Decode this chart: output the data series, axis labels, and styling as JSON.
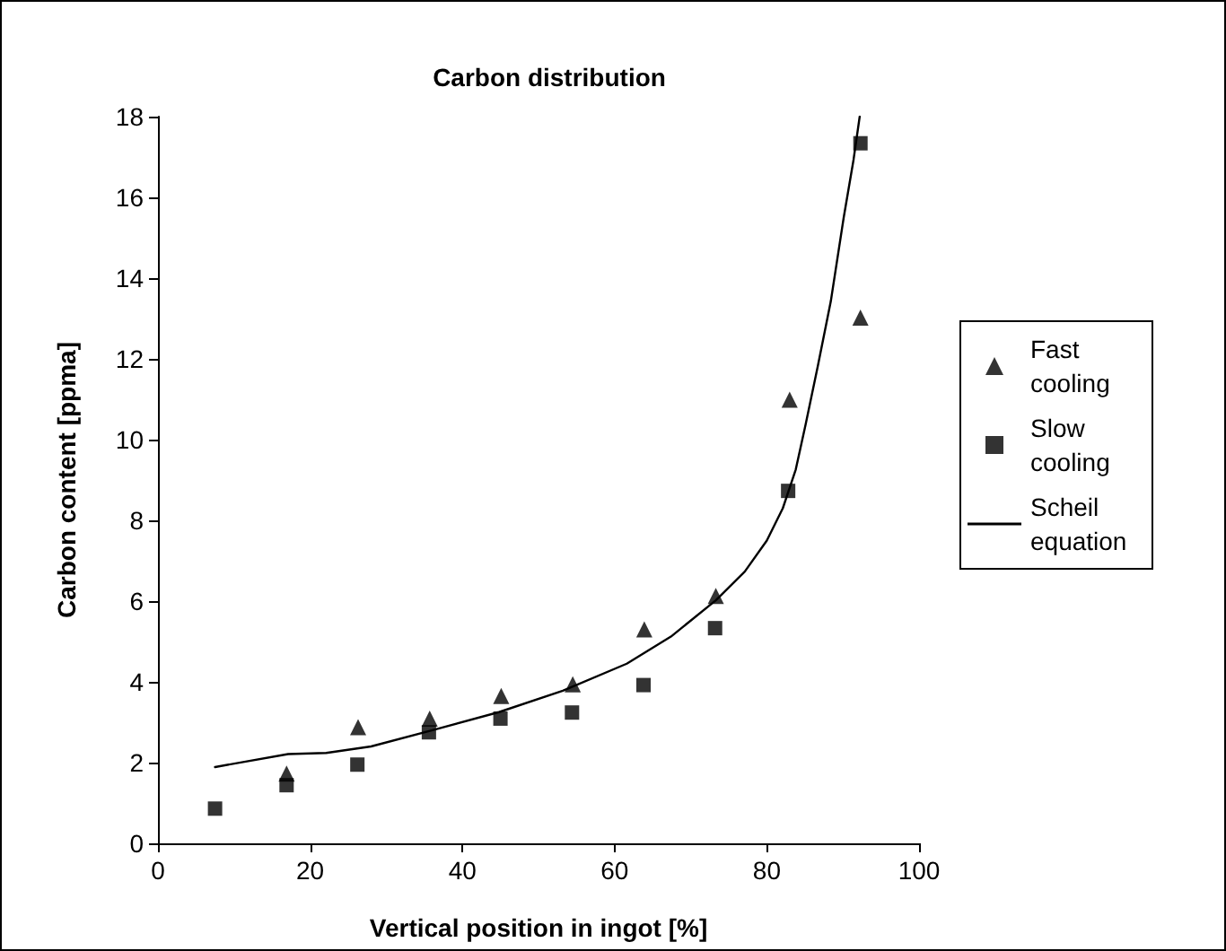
{
  "chart_data": {
    "type": "scatter",
    "title": "Carbon distribution",
    "xlabel": "Vertical position in ingot [%]",
    "ylabel": "Carbon content [ppma]",
    "xlim": [
      0,
      100
    ],
    "xticks": [
      0,
      20,
      40,
      60,
      80,
      100
    ],
    "ylim": [
      0,
      18
    ],
    "yticks": [
      0,
      2,
      4,
      6,
      8,
      10,
      12,
      14,
      16,
      18
    ],
    "grid": false,
    "legend": "right",
    "series": [
      {
        "name": "Fast cooling",
        "marker": "triangle",
        "color": "#000000",
        "x": [
          16.9,
          26.3,
          35.7,
          45.1,
          54.5,
          63.9,
          73.3,
          83.0,
          92.3
        ],
        "values": [
          1.73,
          2.88,
          3.09,
          3.65,
          3.94,
          5.3,
          6.13,
          10.99,
          13.02
        ]
      },
      {
        "name": "Slow cooling",
        "marker": "square",
        "color": "#000000",
        "x": [
          7.5,
          16.9,
          26.2,
          35.6,
          45.0,
          54.4,
          63.8,
          73.2,
          82.8,
          92.3
        ],
        "values": [
          0.86,
          1.44,
          1.95,
          2.75,
          3.09,
          3.24,
          3.92,
          5.33,
          8.73,
          17.34
        ]
      },
      {
        "name": "Scheil equation",
        "type": "line",
        "marker": "none",
        "line_style": "solid",
        "color": "#000000",
        "x": [
          7.5,
          17.1,
          22.1,
          28,
          36.4,
          44.8,
          53.2,
          61.6,
          67.4,
          73.3,
          77.1,
          80,
          82.1,
          83.8,
          85.1,
          86.7,
          88.4,
          90.1,
          91.4,
          92.2
        ],
        "values": [
          1.89,
          2.21,
          2.24,
          2.4,
          2.82,
          3.25,
          3.78,
          4.45,
          5.12,
          6.02,
          6.73,
          7.5,
          8.3,
          9.26,
          10.38,
          11.82,
          13.42,
          15.5,
          16.94,
          18
        ]
      }
    ]
  }
}
